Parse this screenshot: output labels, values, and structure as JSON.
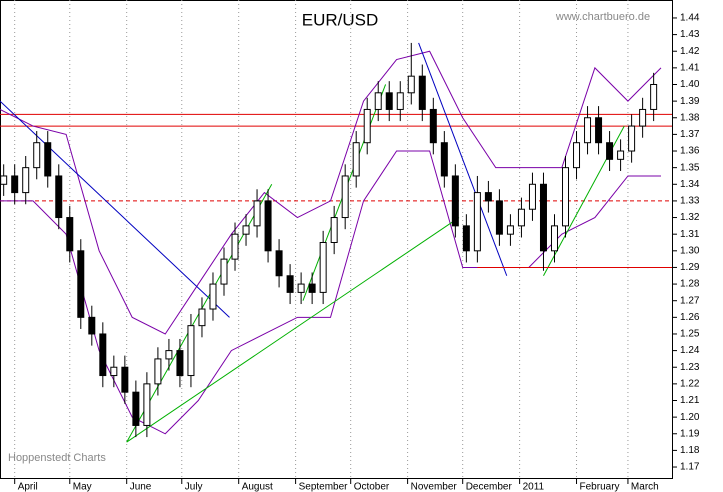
{
  "chart_data": {
    "type": "candlestick",
    "title": "EUR/USD",
    "source": "www.chartbuero.de",
    "credit": "Hoppenstedt Charts",
    "xlim": [
      0,
      366
    ],
    "ylim": [
      1.1634,
      1.4508
    ],
    "xticks": [
      {
        "value": 8,
        "label": "April"
      },
      {
        "value": 38,
        "label": "May"
      },
      {
        "value": 69,
        "label": "June"
      },
      {
        "value": 99,
        "label": "July"
      },
      {
        "value": 130,
        "label": "August"
      },
      {
        "value": 161,
        "label": "September"
      },
      {
        "value": 191,
        "label": "October"
      },
      {
        "value": 222,
        "label": "November"
      },
      {
        "value": 252,
        "label": "December"
      },
      {
        "value": 283,
        "label": "2011"
      },
      {
        "value": 314,
        "label": "February"
      },
      {
        "value": 342,
        "label": "March"
      }
    ],
    "yticks": [
      1.17,
      1.18,
      1.19,
      {
        "value": 1.2,
        "label": "1.20"
      },
      1.21,
      1.22,
      1.23,
      1.24,
      1.25,
      1.26,
      1.27,
      1.28,
      1.29,
      {
        "value": 1.3,
        "label": "1.30"
      },
      1.31,
      1.32,
      1.33,
      1.34,
      1.35,
      1.36,
      1.37,
      1.38,
      1.39,
      {
        "value": 1.4,
        "label": "1.40"
      },
      1.41,
      1.42,
      1.43,
      1.44
    ],
    "grid": true,
    "candles": {
      "x": [
        2,
        8,
        14,
        20,
        26,
        32,
        38,
        44,
        50,
        56,
        62,
        68,
        74,
        80,
        86,
        92,
        98,
        104,
        110,
        116,
        122,
        128,
        134,
        140,
        146,
        152,
        158,
        164,
        170,
        176,
        182,
        188,
        194,
        200,
        206,
        212,
        218,
        224,
        230,
        236,
        242,
        248,
        254,
        260,
        266,
        272,
        278,
        284,
        290,
        296,
        302,
        308,
        314,
        320,
        326,
        332,
        338,
        344,
        350,
        356
      ],
      "open": [
        1.34,
        1.345,
        1.335,
        1.35,
        1.365,
        1.345,
        1.32,
        1.3,
        1.26,
        1.25,
        1.225,
        1.23,
        1.215,
        1.195,
        1.22,
        1.235,
        1.24,
        1.225,
        1.255,
        1.265,
        1.28,
        1.295,
        1.31,
        1.315,
        1.33,
        1.3,
        1.285,
        1.275,
        1.28,
        1.275,
        1.305,
        1.32,
        1.345,
        1.365,
        1.385,
        1.395,
        1.385,
        1.395,
        1.405,
        1.385,
        1.365,
        1.345,
        1.315,
        1.3,
        1.335,
        1.33,
        1.31,
        1.315,
        1.325,
        1.34,
        1.3,
        1.315,
        1.35,
        1.365,
        1.38,
        1.365,
        1.355,
        1.36,
        1.375,
        1.385
      ],
      "high": [
        1.352,
        1.352,
        1.357,
        1.372,
        1.372,
        1.352,
        1.327,
        1.307,
        1.267,
        1.257,
        1.237,
        1.237,
        1.222,
        1.227,
        1.242,
        1.247,
        1.247,
        1.262,
        1.272,
        1.287,
        1.302,
        1.317,
        1.322,
        1.337,
        1.337,
        1.307,
        1.292,
        1.287,
        1.287,
        1.312,
        1.327,
        1.352,
        1.372,
        1.392,
        1.402,
        1.402,
        1.402,
        1.425,
        1.412,
        1.392,
        1.372,
        1.352,
        1.322,
        1.345,
        1.342,
        1.337,
        1.322,
        1.332,
        1.347,
        1.347,
        1.322,
        1.357,
        1.372,
        1.387,
        1.387,
        1.372,
        1.367,
        1.382,
        1.392,
        1.407
      ],
      "low": [
        1.333,
        1.328,
        1.328,
        1.343,
        1.338,
        1.313,
        1.293,
        1.253,
        1.243,
        1.218,
        1.218,
        1.208,
        1.188,
        1.188,
        1.213,
        1.228,
        1.218,
        1.218,
        1.248,
        1.258,
        1.273,
        1.288,
        1.303,
        1.308,
        1.293,
        1.278,
        1.268,
        1.268,
        1.268,
        1.268,
        1.298,
        1.313,
        1.338,
        1.358,
        1.378,
        1.378,
        1.378,
        1.388,
        1.378,
        1.358,
        1.338,
        1.308,
        1.293,
        1.293,
        1.323,
        1.303,
        1.303,
        1.308,
        1.318,
        1.288,
        1.293,
        1.308,
        1.343,
        1.358,
        1.358,
        1.348,
        1.348,
        1.353,
        1.368,
        1.378
      ],
      "close": [
        1.345,
        1.335,
        1.35,
        1.365,
        1.345,
        1.32,
        1.3,
        1.26,
        1.25,
        1.225,
        1.23,
        1.215,
        1.195,
        1.22,
        1.235,
        1.24,
        1.225,
        1.255,
        1.265,
        1.28,
        1.295,
        1.31,
        1.315,
        1.33,
        1.3,
        1.285,
        1.275,
        1.28,
        1.275,
        1.305,
        1.32,
        1.345,
        1.365,
        1.385,
        1.395,
        1.385,
        1.395,
        1.405,
        1.385,
        1.365,
        1.345,
        1.315,
        1.3,
        1.335,
        1.33,
        1.31,
        1.315,
        1.325,
        1.34,
        1.3,
        1.315,
        1.35,
        1.365,
        1.38,
        1.365,
        1.355,
        1.36,
        1.375,
        1.385,
        1.4
      ]
    },
    "bands": {
      "color": "#7a00a8",
      "x": [
        0,
        18,
        36,
        54,
        72,
        90,
        108,
        126,
        144,
        162,
        180,
        198,
        216,
        234,
        252,
        270,
        288,
        306,
        324,
        342,
        360
      ],
      "upper": [
        1.385,
        1.375,
        1.37,
        1.3,
        1.26,
        1.25,
        1.28,
        1.31,
        1.335,
        1.32,
        1.33,
        1.39,
        1.415,
        1.42,
        1.38,
        1.35,
        1.35,
        1.35,
        1.41,
        1.39,
        1.41
      ],
      "lower": [
        1.33,
        1.33,
        1.31,
        1.24,
        1.2,
        1.19,
        1.21,
        1.24,
        1.25,
        1.26,
        1.26,
        1.33,
        1.36,
        1.36,
        1.29,
        1.29,
        1.29,
        1.31,
        1.32,
        1.345,
        1.345
      ]
    },
    "hlines": [
      {
        "value": 1.382,
        "color": "#e00000",
        "dashed": false
      },
      {
        "value": 1.375,
        "color": "#e00000",
        "dashed": false
      },
      {
        "value": 1.33,
        "color": "#e00000",
        "dashed": true
      }
    ],
    "segments": [
      {
        "x": [
          0,
          125
        ],
        "y": [
          1.39,
          1.26
        ],
        "color": "#0000c0"
      },
      {
        "x": [
          69,
          148
        ],
        "y": [
          1.185,
          1.34
        ],
        "color": "#00b000"
      },
      {
        "x": [
          69,
          250
        ],
        "y": [
          1.185,
          1.32
        ],
        "color": "#00b000"
      },
      {
        "x": [
          165,
          210
        ],
        "y": [
          1.27,
          1.4
        ],
        "color": "#00b000"
      },
      {
        "x": [
          228,
          276
        ],
        "y": [
          1.425,
          1.285
        ],
        "color": "#0000c0"
      },
      {
        "x": [
          296,
          340
        ],
        "y": [
          1.285,
          1.375
        ],
        "color": "#00b000"
      },
      {
        "x": [
          260,
          366
        ],
        "y": [
          1.29,
          1.29
        ],
        "color": "#e00000"
      }
    ]
  }
}
